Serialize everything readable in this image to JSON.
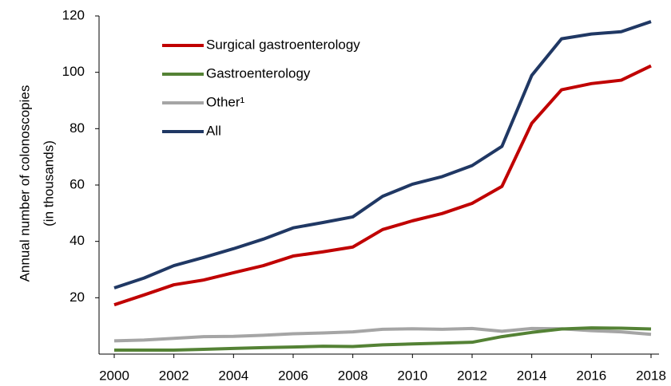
{
  "chart_data": {
    "type": "line",
    "ylabel": [
      "Annual number of colonoscopies",
      "(in thousands)"
    ],
    "x": [
      2000,
      2001,
      2002,
      2003,
      2004,
      2005,
      2006,
      2007,
      2008,
      2009,
      2010,
      2011,
      2012,
      2013,
      2014,
      2015,
      2016,
      2017,
      2018
    ],
    "series": [
      {
        "name": "Surgical gastroenterology",
        "color": "#c00000",
        "values": [
          17.5,
          21,
          24.6,
          26.3,
          28.9,
          31.4,
          34.8,
          36.3,
          38,
          44.2,
          47.3,
          49.9,
          53.5,
          59.5,
          81.9,
          93.8,
          96,
          97.2,
          102.3
        ]
      },
      {
        "name": "Gastroenterology",
        "color": "#548235",
        "values": [
          1.4,
          1.4,
          1.4,
          1.7,
          2,
          2.3,
          2.5,
          2.8,
          2.7,
          3.3,
          3.6,
          3.9,
          4.2,
          6.2,
          7.7,
          8.9,
          9.3,
          9.2,
          8.9
        ]
      },
      {
        "name": "Other¹",
        "color": "#a5a5a5",
        "values": [
          4.7,
          5,
          5.6,
          6.2,
          6.3,
          6.7,
          7.2,
          7.5,
          7.9,
          8.8,
          9,
          8.8,
          9.1,
          8.1,
          9.1,
          9,
          8.3,
          7.9,
          7.0
        ]
      },
      {
        "name": "All",
        "color": "#203864",
        "values": [
          23.5,
          27,
          31.4,
          34.3,
          37.4,
          40.8,
          44.8,
          46.7,
          48.7,
          56,
          60.3,
          63,
          66.9,
          73.7,
          98.9,
          111.9,
          113.6,
          114.4,
          118
        ]
      }
    ],
    "xlim": [
      2000,
      2018
    ],
    "xticks": [
      2000,
      2002,
      2004,
      2006,
      2008,
      2010,
      2012,
      2014,
      2016,
      2018
    ],
    "ylim": [
      0,
      120
    ],
    "yticks": [
      20,
      40,
      60,
      80,
      100,
      120
    ],
    "grid": false,
    "legend": "upper left"
  }
}
